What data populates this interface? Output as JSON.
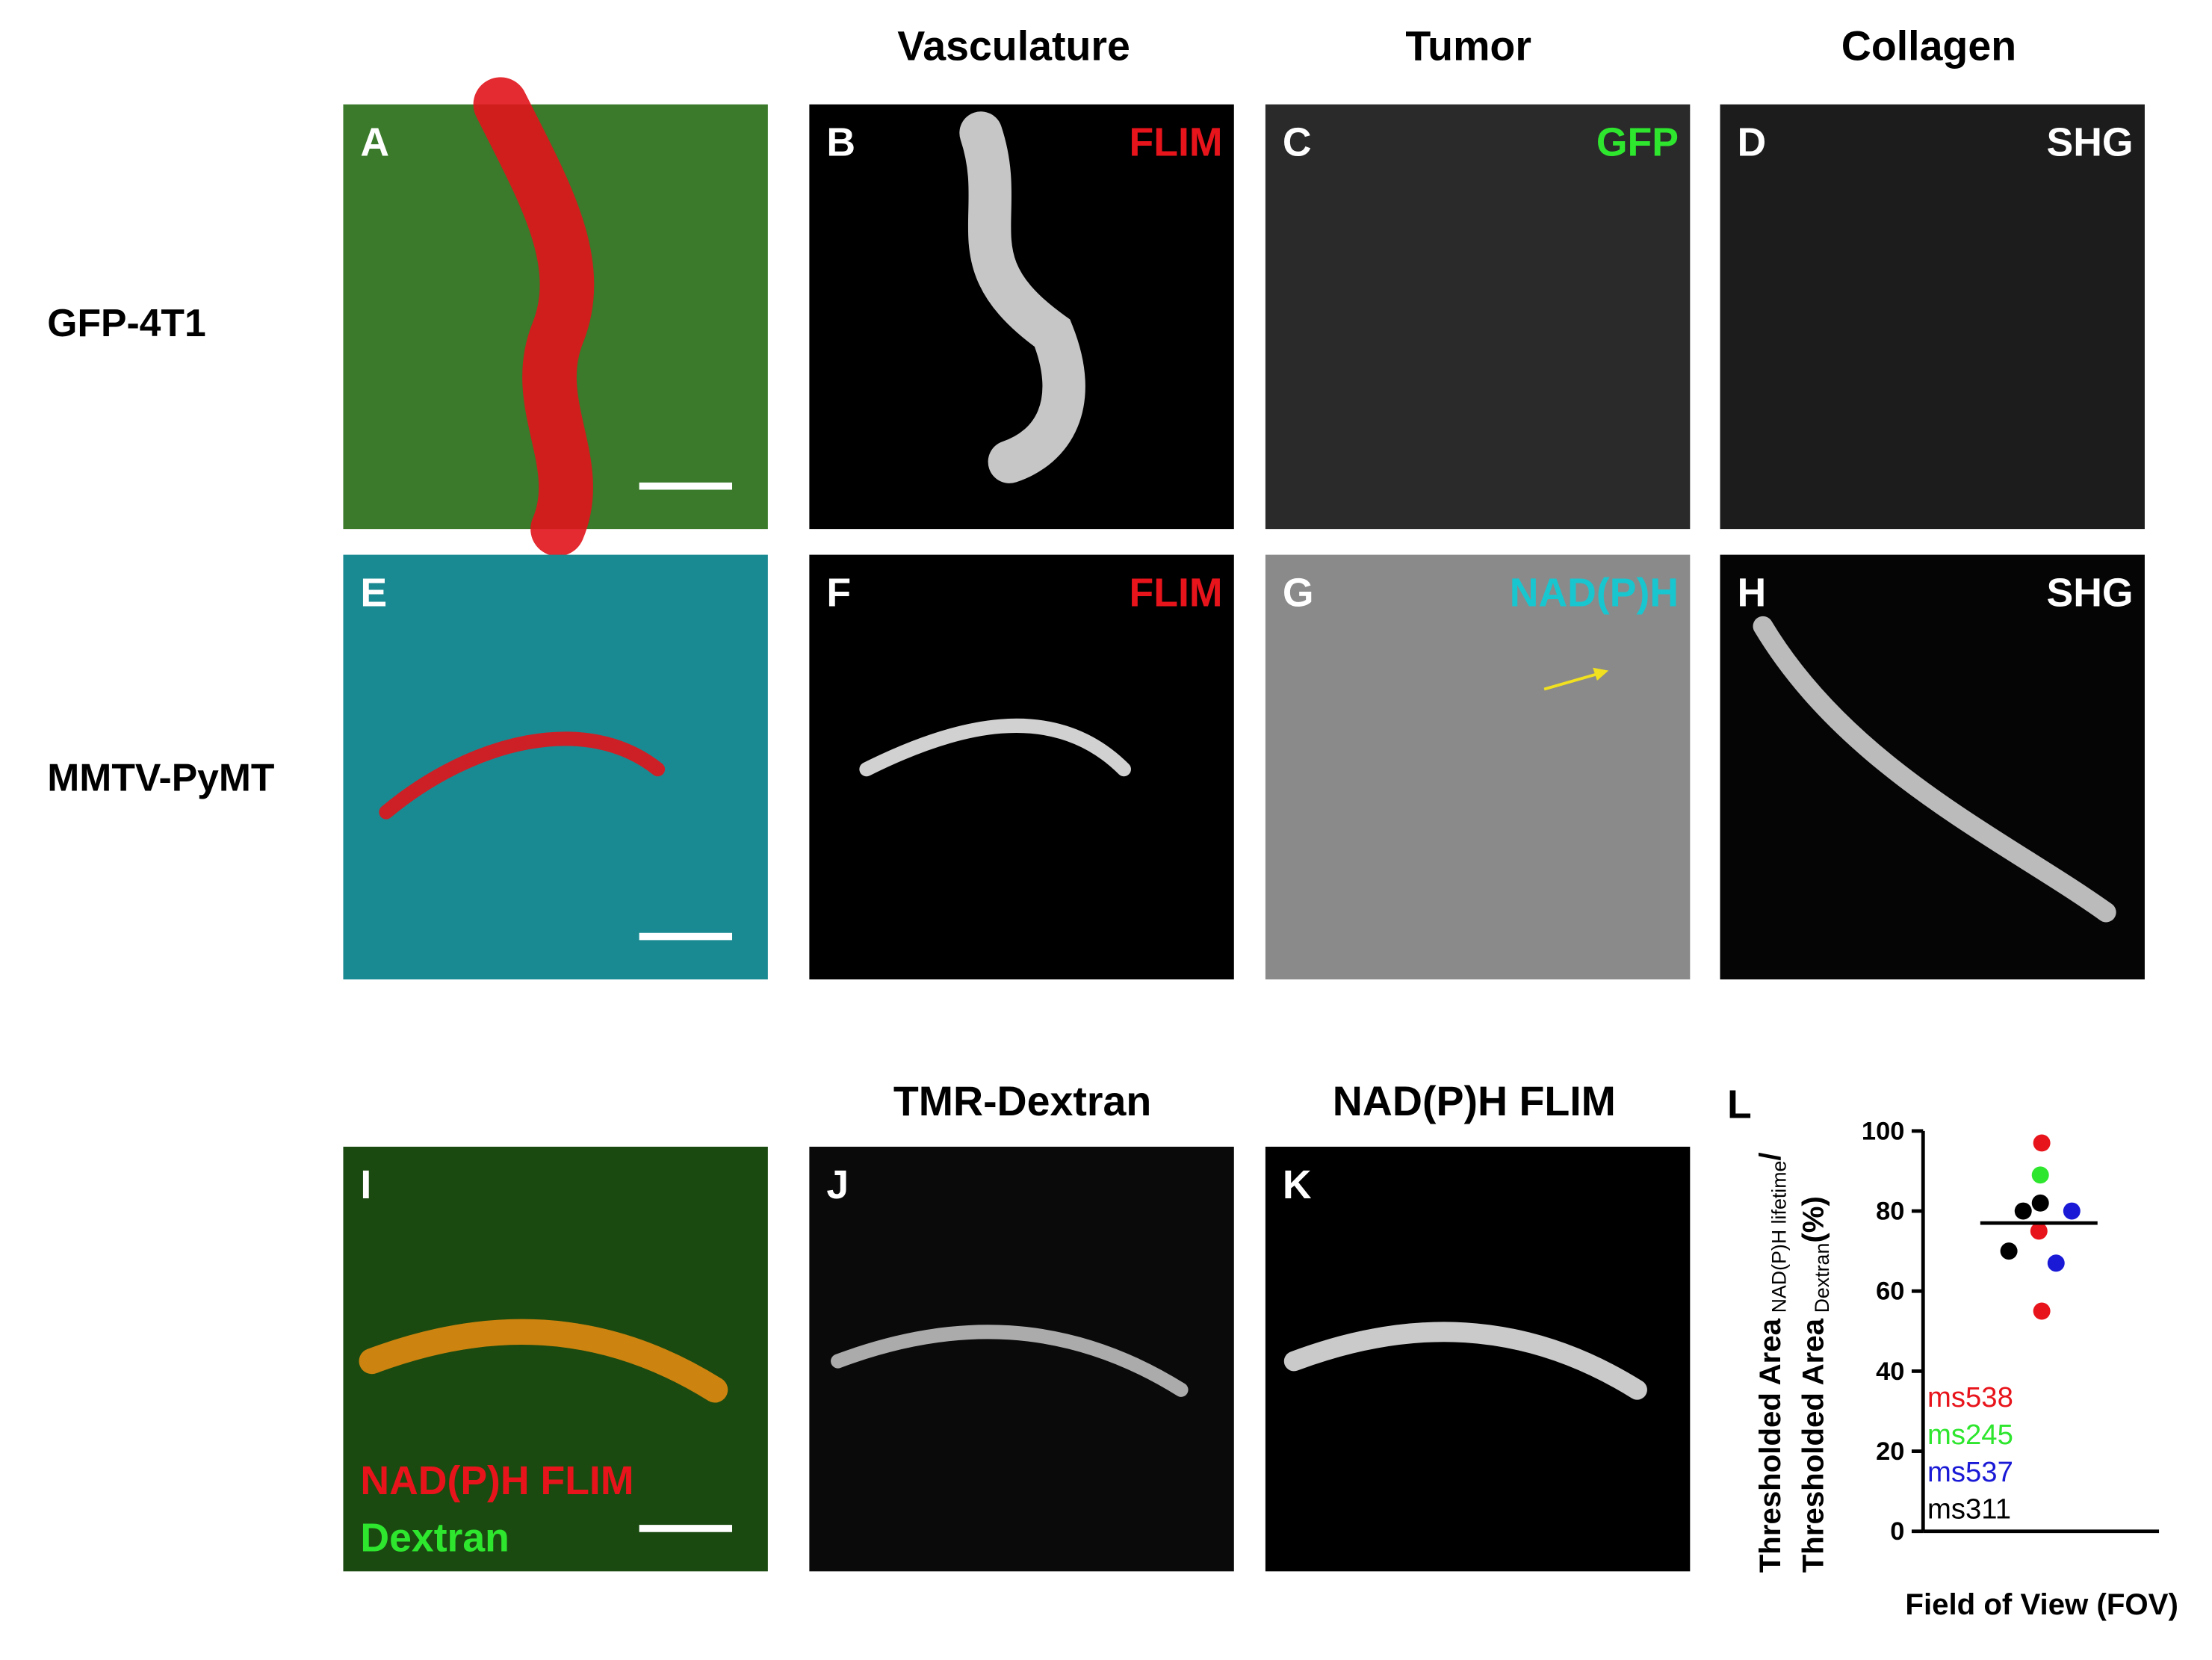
{
  "column_headers": [
    "Vasculature",
    "Tumor",
    "Collagen"
  ],
  "row_labels": [
    "GFP-4T1",
    "MMTV-PyMT"
  ],
  "row3_headers": [
    "TMR-Dextran",
    "NAD(P)H FLIM"
  ],
  "panels": [
    {
      "letter": "A"
    },
    {
      "letter": "B",
      "label": "FLIM",
      "label_color": "#e8141b"
    },
    {
      "letter": "C",
      "label": "GFP",
      "label_color": "#2ee62e"
    },
    {
      "letter": "D",
      "label": "SHG",
      "label_color": "#ffffff"
    },
    {
      "letter": "E"
    },
    {
      "letter": "F",
      "label": "FLIM",
      "label_color": "#e8141b"
    },
    {
      "letter": "G",
      "label": "NAD(P)H",
      "label_color": "#18c6d0"
    },
    {
      "letter": "H",
      "label": "SHG",
      "label_color": "#ffffff"
    },
    {
      "letter": "I",
      "labels": [
        {
          "text": "NAD(P)H FLIM",
          "color": "#e8141b"
        },
        {
          "text": "Dextran",
          "color": "#2ee62e"
        }
      ]
    },
    {
      "letter": "J"
    },
    {
      "letter": "K"
    }
  ],
  "chart_data": {
    "type": "scatter",
    "letter": "L",
    "y_label": [
      {
        "text": "Thresholded Area",
        "sub": "NAD(P)H lifetime",
        "suffix": "/"
      },
      {
        "text": "Thresholded Area",
        "sub": "Dextran",
        "suffix": "(%)"
      }
    ],
    "x_label": "Field of View (FOV)",
    "ylim": [
      0,
      100
    ],
    "yticks": [
      0,
      20,
      40,
      60,
      80,
      100
    ],
    "mean": 77,
    "series": [
      {
        "name": "ms538",
        "color": "#e8141b",
        "values": [
          97,
          75,
          55
        ]
      },
      {
        "name": "ms245",
        "color": "#2ee62e",
        "values": [
          89
        ]
      },
      {
        "name": "ms537",
        "color": "#1a1ad6",
        "values": [
          80,
          67
        ]
      },
      {
        "name": "ms311",
        "color": "#000000",
        "values": [
          80,
          82,
          70
        ]
      }
    ]
  }
}
